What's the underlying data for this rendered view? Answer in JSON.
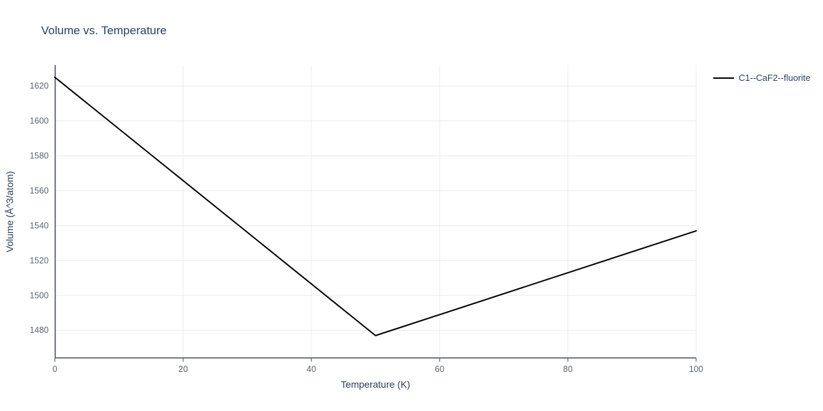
{
  "chart_data": {
    "type": "line",
    "title": "Volume vs. Temperature",
    "xlabel": "Temperature (K)",
    "ylabel": "Volume (Å^3/atom)",
    "xlim": [
      0,
      100
    ],
    "ylim": [
      1464,
      1632
    ],
    "x_ticks": [
      0,
      20,
      40,
      60,
      80,
      100
    ],
    "y_ticks": [
      1480,
      1500,
      1520,
      1540,
      1560,
      1580,
      1600,
      1620
    ],
    "grid": true,
    "legend_position": "top-right-outside",
    "series": [
      {
        "name": "C1--CaF2--fluorite",
        "color": "#000000",
        "x": [
          0,
          50,
          100
        ],
        "y": [
          1625,
          1477,
          1537
        ]
      }
    ]
  },
  "colors": {
    "title": "#2a3f5f",
    "axis_label": "#2a3f5f",
    "tick_label": "#5b6672",
    "grid": "#e8ebf2",
    "axis_line": "#444a54",
    "legend_text": "#2a3f5f"
  }
}
